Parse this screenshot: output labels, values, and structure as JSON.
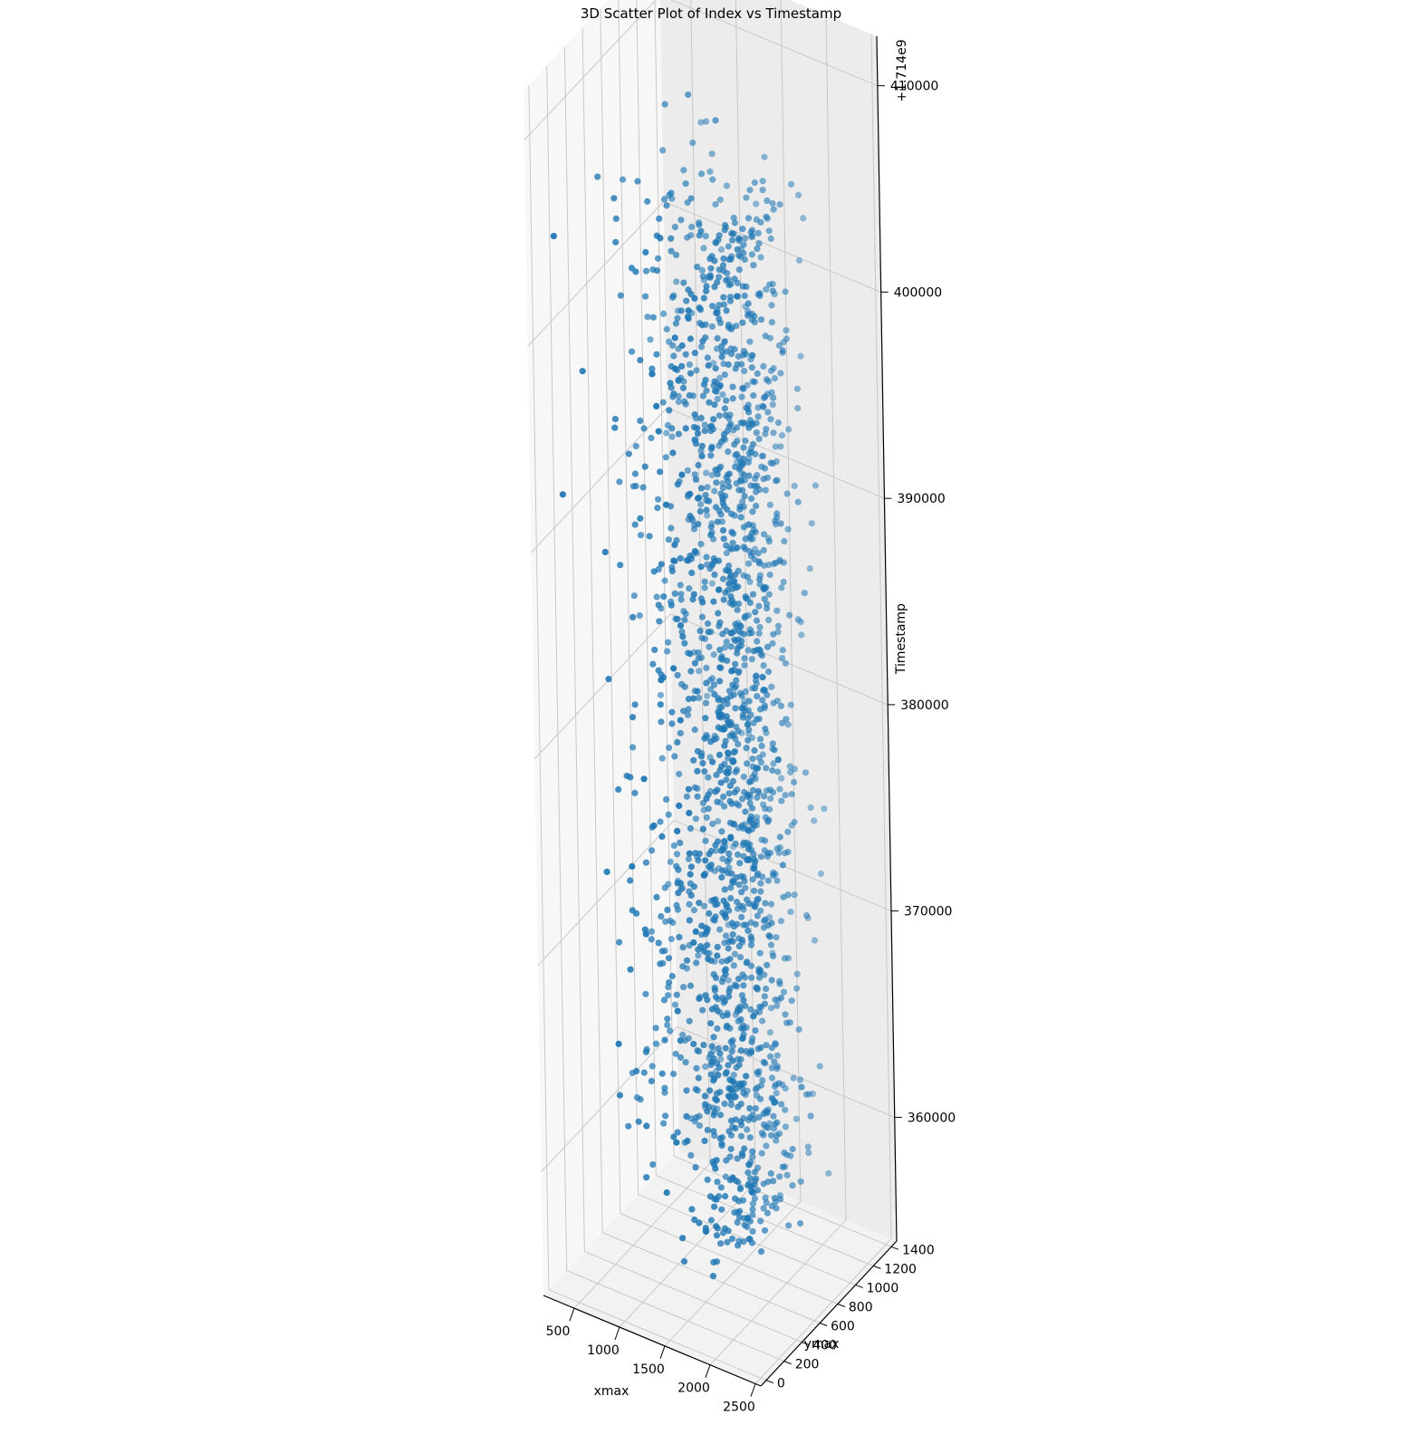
{
  "chart_data": {
    "type": "scatter",
    "projection": "3d",
    "title": "3D Scatter Plot of Index vs Timestamp",
    "xlabel": "xmax",
    "ylabel": "ymax",
    "zlabel": "Timestamp",
    "z_offset_label": "+1.714e9",
    "x_ticks": [
      "500",
      "1000",
      "1500",
      "2000",
      "2500"
    ],
    "y_ticks": [
      "0",
      "200",
      "400",
      "600",
      "800",
      "1000",
      "1200",
      "1400"
    ],
    "z_ticks": [
      "360000",
      "370000",
      "380000",
      "390000",
      "400000",
      "410000"
    ],
    "xlim": [
      160,
      2560
    ],
    "ylim": [
      -60,
      1460
    ],
    "zlim": [
      1714354000,
      1714412400
    ],
    "grid": true,
    "color": "#1f77b4",
    "clusters": [
      {
        "name": "",
        "count": 1350,
        "x_center": 1700,
        "x_spread": 130,
        "y_center": 700,
        "y_spread": 280,
        "z_range": [
          1714356000,
          1714405500
        ]
      },
      {
        "name": "",
        "count": 550,
        "x_center": 1050,
        "x_spread": 260,
        "y_center": 760,
        "y_spread": 320,
        "z_range": [
          1714359000,
          1714406500
        ]
      }
    ],
    "outliers": [
      {
        "x": 2300,
        "y": 700,
        "z": 1714364500
      },
      {
        "x": 2100,
        "y": 700,
        "z": 1714380000
      },
      {
        "x": 1200,
        "y": 720,
        "z": 1714410500
      },
      {
        "x": 900,
        "y": 760,
        "z": 1714409300
      },
      {
        "x": 1500,
        "y": 720,
        "z": 1714409800
      }
    ]
  }
}
